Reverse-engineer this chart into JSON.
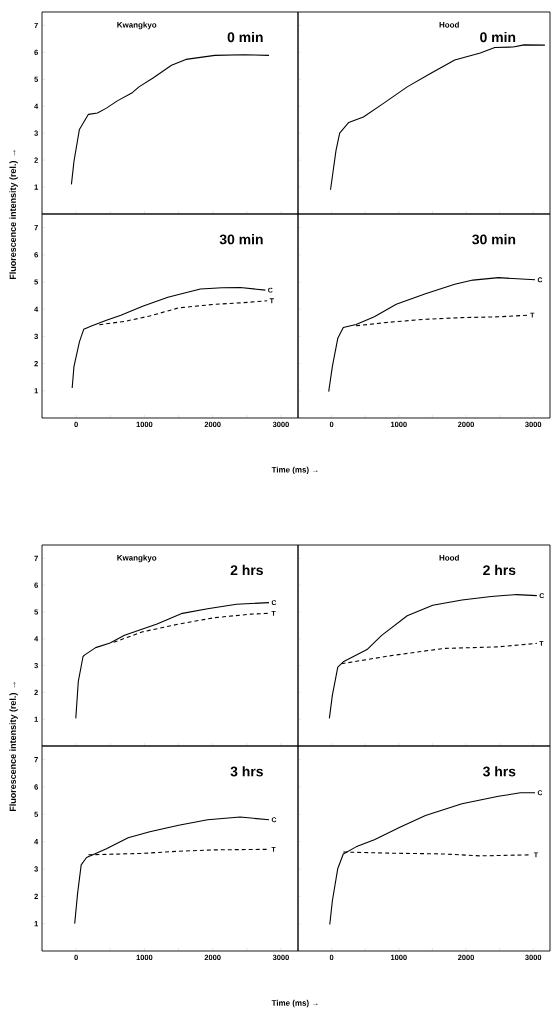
{
  "chart_data": [
    {
      "type": "line",
      "title": "Kwangkyo",
      "annotations": [
        "0 min"
      ],
      "xlim": [
        -500,
        3250
      ],
      "ylim": [
        0,
        7.5
      ],
      "xticks": [
        {
          "value": -500,
          "label": null
        },
        {
          "value": 0,
          "label": null
        },
        {
          "value": 500,
          "label": null
        },
        {
          "value": 1000,
          "label": null
        },
        {
          "value": 1500,
          "label": null
        },
        {
          "value": 2000,
          "label": null
        },
        {
          "value": 2500,
          "label": null
        },
        {
          "value": 3000,
          "label": null
        }
      ],
      "yticks": [
        1,
        2,
        3,
        4,
        5,
        6,
        7
      ],
      "tick_labels": "y",
      "marker": "none",
      "series": [
        {
          "color": "#000000",
          "line_style": "solid",
          "x": [
            -69,
            -32,
            48,
            180,
            312,
            444,
            603,
            815,
            920,
            1132,
            1397,
            1608,
            2032,
            2455,
            2825
          ],
          "values": [
            1.1,
            1.95,
            3.14,
            3.7,
            3.75,
            3.93,
            4.2,
            4.49,
            4.72,
            5.06,
            5.52,
            5.74,
            5.89,
            5.91,
            5.89
          ]
        }
      ]
    },
    {
      "type": "line",
      "title": "Hood",
      "annotations": [
        "0 min"
      ],
      "xlim": [
        -500,
        3250
      ],
      "ylim": [
        0,
        7.5
      ],
      "xticks": [
        {
          "value": -500,
          "label": null
        },
        {
          "value": 0,
          "label": null
        },
        {
          "value": 500,
          "label": null
        },
        {
          "value": 1000,
          "label": null
        },
        {
          "value": 1500,
          "label": null
        },
        {
          "value": 2000,
          "label": null
        },
        {
          "value": 2500,
          "label": null
        },
        {
          "value": 3000,
          "label": null
        }
      ],
      "yticks": [
        {
          "value": 1,
          "label": null
        },
        {
          "value": 2,
          "label": null
        },
        {
          "value": 3,
          "label": null
        },
        {
          "value": 4,
          "label": null
        },
        {
          "value": 5,
          "label": null
        },
        {
          "value": 6,
          "label": null
        },
        {
          "value": 7,
          "label": null
        }
      ],
      "tick_labels": false,
      "marker": "none",
      "series": [
        {
          "color": "#000000",
          "line_style": "solid",
          "x": [
            -16,
            65,
            120,
            255,
            473,
            745,
            1125,
            1451,
            1832,
            2212,
            2429,
            2701,
            2864,
            3174
          ],
          "values": [
            0.9,
            2.35,
            3.0,
            3.4,
            3.6,
            4.06,
            4.72,
            5.19,
            5.72,
            5.98,
            6.18,
            6.2,
            6.28,
            6.27
          ]
        }
      ]
    },
    {
      "type": "line",
      "annotations": [
        "30 min"
      ],
      "xlabel": "Time (ms)  →",
      "ylabel": "Fluorescence intensity (rel.)  →",
      "xlim": [
        -500,
        3250
      ],
      "ylim": [
        0,
        7.5
      ],
      "xticks": [
        {
          "value": -500,
          "label": null
        },
        0,
        {
          "value": 500,
          "label": null
        },
        1000,
        {
          "value": 1500,
          "label": null
        },
        2000,
        {
          "value": 2500,
          "label": null
        },
        3000
      ],
      "yticks": [
        1,
        2,
        3,
        4,
        5,
        6,
        7
      ],
      "marker": "none",
      "series": [
        {
          "name": "C",
          "color": "#000000",
          "line_style": "solid",
          "x": [
            -58,
            -32,
            48,
            111,
            233,
            444,
            656,
            974,
            1344,
            1820,
            2138,
            2402,
            2772
          ],
          "values": [
            1.1,
            1.89,
            2.8,
            3.26,
            3.39,
            3.59,
            3.78,
            4.11,
            4.44,
            4.74,
            4.79,
            4.8,
            4.7
          ]
        },
        {
          "name": "T",
          "color": "#000000",
          "line_style": "dashed",
          "x": [
            339,
            709,
            1079,
            1503,
            2032,
            2455,
            2799
          ],
          "values": [
            3.43,
            3.55,
            3.75,
            4.05,
            4.18,
            4.24,
            4.31
          ]
        }
      ]
    },
    {
      "type": "line",
      "annotations": [
        "30 min"
      ],
      "xlim": [
        -500,
        3250
      ],
      "ylim": [
        0,
        7.5
      ],
      "xticks": [
        {
          "value": -500,
          "label": null
        },
        0,
        {
          "value": 500,
          "label": null
        },
        1000,
        {
          "value": 1500,
          "label": null
        },
        2000,
        {
          "value": 2500,
          "label": null
        },
        3000
      ],
      "yticks": [
        {
          "value": 1,
          "label": null
        },
        {
          "value": 2,
          "label": null
        },
        {
          "value": 3,
          "label": null
        },
        {
          "value": 4,
          "label": null
        },
        {
          "value": 5,
          "label": null
        },
        {
          "value": 6,
          "label": null
        },
        {
          "value": 7,
          "label": null
        }
      ],
      "tick_labels": "x",
      "marker": "none",
      "series": [
        {
          "name": "C",
          "color": "#000000",
          "line_style": "solid",
          "x": [
            -43,
            11,
            92,
            174,
            364,
            636,
            962,
            1397,
            1832,
            2103,
            2484,
            3027
          ],
          "values": [
            0.97,
            1.89,
            2.93,
            3.33,
            3.44,
            3.72,
            4.18,
            4.57,
            4.92,
            5.07,
            5.16,
            5.08
          ]
        },
        {
          "name": "T",
          "color": "#000000",
          "line_style": "dashed",
          "x": [
            364,
            853,
            1397,
            1940,
            2484,
            2918
          ],
          "values": [
            3.39,
            3.52,
            3.63,
            3.69,
            3.72,
            3.78
          ]
        }
      ]
    },
    {
      "type": "line",
      "title": "Kwangkyo",
      "annotations": [
        "2 hrs"
      ],
      "xlim": [
        -500,
        3250
      ],
      "ylim": [
        0,
        7.5
      ],
      "xticks": [
        {
          "value": -500,
          "label": null
        },
        {
          "value": 0,
          "label": null
        },
        {
          "value": 500,
          "label": null
        },
        {
          "value": 1000,
          "label": null
        },
        {
          "value": 1500,
          "label": null
        },
        {
          "value": 2000,
          "label": null
        },
        {
          "value": 2500,
          "label": null
        },
        {
          "value": 3000,
          "label": null
        }
      ],
      "yticks": [
        1,
        2,
        3,
        4,
        5,
        6,
        7
      ],
      "tick_labels": "y",
      "marker": "none",
      "series": [
        {
          "name": "C",
          "color": "#000000",
          "line_style": "solid",
          "x": [
            -5,
            32,
            101,
            127,
            286,
            497,
            709,
            1185,
            1556,
            1926,
            2349,
            2825
          ],
          "values": [
            1.03,
            2.41,
            3.34,
            3.4,
            3.67,
            3.84,
            4.13,
            4.55,
            4.95,
            5.12,
            5.29,
            5.35
          ]
        },
        {
          "name": "T",
          "color": "#000000",
          "line_style": "dashed",
          "x": [
            550,
            974,
            1503,
            2032,
            2561,
            2825
          ],
          "values": [
            3.87,
            4.26,
            4.55,
            4.79,
            4.92,
            4.95
          ]
        }
      ]
    },
    {
      "type": "line",
      "title": "Hood",
      "annotations": [
        "2 hrs"
      ],
      "xlim": [
        -500,
        3250
      ],
      "ylim": [
        0,
        7.5
      ],
      "xticks": [
        {
          "value": -500,
          "label": null
        },
        {
          "value": 0,
          "label": null
        },
        {
          "value": 500,
          "label": null
        },
        {
          "value": 1000,
          "label": null
        },
        {
          "value": 1500,
          "label": null
        },
        {
          "value": 2000,
          "label": null
        },
        {
          "value": 2500,
          "label": null
        },
        {
          "value": 3000,
          "label": null
        }
      ],
      "yticks": [
        {
          "value": 1,
          "label": null
        },
        {
          "value": 2,
          "label": null
        },
        {
          "value": 3,
          "label": null
        },
        {
          "value": 4,
          "label": null
        },
        {
          "value": 5,
          "label": null
        },
        {
          "value": 6,
          "label": null
        },
        {
          "value": 7,
          "label": null
        }
      ],
      "tick_labels": false,
      "marker": "none",
      "series": [
        {
          "name": "C",
          "color": "#000000",
          "line_style": "solid",
          "x": [
            -33,
            11,
            92,
            174,
            527,
            745,
            1125,
            1505,
            1940,
            2375,
            2755,
            3054
          ],
          "values": [
            1.03,
            1.89,
            2.94,
            3.14,
            3.6,
            4.13,
            4.86,
            5.25,
            5.45,
            5.58,
            5.65,
            5.61
          ]
        },
        {
          "name": "T",
          "color": "#000000",
          "line_style": "dashed",
          "x": [
            147,
            853,
            1668,
            2484,
            3054
          ],
          "values": [
            3.07,
            3.36,
            3.64,
            3.7,
            3.83
          ]
        }
      ]
    },
    {
      "type": "line",
      "annotations": [
        "3 hrs"
      ],
      "xlabel": "Time (ms)  →",
      "ylabel": "Fluorescence intensity (rel.)  →",
      "xlim": [
        -500,
        3250
      ],
      "ylim": [
        0,
        7.5
      ],
      "xticks": [
        {
          "value": -500,
          "label": null
        },
        0,
        {
          "value": 500,
          "label": null
        },
        1000,
        {
          "value": 1500,
          "label": null
        },
        2000,
        {
          "value": 2500,
          "label": null
        },
        3000
      ],
      "yticks": [
        1,
        2,
        3,
        4,
        5,
        6,
        7
      ],
      "marker": "none",
      "series": [
        {
          "name": "C",
          "color": "#000000",
          "line_style": "solid",
          "x": [
            -21,
            21,
            74,
            153,
            444,
            762,
            1079,
            1503,
            1926,
            2402,
            2825
          ],
          "values": [
            1.0,
            2.1,
            3.15,
            3.42,
            3.74,
            4.14,
            4.36,
            4.6,
            4.8,
            4.9,
            4.8
          ]
        },
        {
          "name": "T",
          "color": "#000000",
          "line_style": "dashed",
          "x": [
            180,
            974,
            1503,
            2032,
            2825
          ],
          "values": [
            3.52,
            3.57,
            3.65,
            3.7,
            3.72
          ]
        }
      ]
    },
    {
      "type": "line",
      "annotations": [
        "3 hrs"
      ],
      "xlim": [
        -500,
        3250
      ],
      "ylim": [
        0,
        7.5
      ],
      "xticks": [
        {
          "value": -500,
          "label": null
        },
        0,
        {
          "value": 500,
          "label": null
        },
        1000,
        {
          "value": 1500,
          "label": null
        },
        2000,
        {
          "value": 2500,
          "label": null
        },
        3000
      ],
      "yticks": [
        {
          "value": 1,
          "label": null
        },
        {
          "value": 2,
          "label": null
        },
        {
          "value": 3,
          "label": null
        },
        {
          "value": 4,
          "label": null
        },
        {
          "value": 5,
          "label": null
        },
        {
          "value": 6,
          "label": null
        },
        {
          "value": 7,
          "label": null
        }
      ],
      "tick_labels": "x",
      "marker": "none",
      "series": [
        {
          "name": "C",
          "color": "#000000",
          "line_style": "solid",
          "x": [
            -27,
            11,
            92,
            174,
            364,
            636,
            1016,
            1397,
            1940,
            2484,
            2810,
            3027
          ],
          "values": [
            0.97,
            1.83,
            3.02,
            3.55,
            3.81,
            4.07,
            4.53,
            4.96,
            5.39,
            5.66,
            5.79,
            5.79
          ]
        },
        {
          "name": "T",
          "color": "#000000",
          "line_style": "dashed",
          "x": [
            174,
            853,
            1668,
            2212,
            2973
          ],
          "values": [
            3.62,
            3.58,
            3.55,
            3.48,
            3.52
          ]
        }
      ]
    }
  ]
}
